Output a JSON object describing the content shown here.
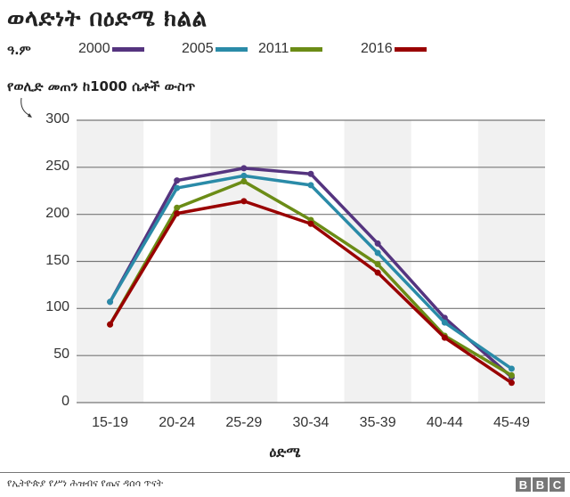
{
  "header": {
    "title": "ወላድነት በዕድሜ ክልል",
    "legend_label": "ዓ.ም",
    "y_axis_note": "የወሊድ መጠን ከ1000 ሴቶች ውስጥ"
  },
  "legend": [
    {
      "label": "2000",
      "color": "#55347f"
    },
    {
      "label": "2005",
      "color": "#2a8ba8"
    },
    {
      "label": "2011",
      "color": "#6b8c16"
    },
    {
      "label": "2016",
      "color": "#990000"
    }
  ],
  "xaxis": {
    "title": "ዕድሜ",
    "ticks": [
      "15-19",
      "20-24",
      "25-29",
      "30-34",
      "35-39",
      "40-44",
      "45-49"
    ]
  },
  "yaxis": {
    "ticks": [
      "0",
      "50",
      "100",
      "150",
      "200",
      "250",
      "300"
    ]
  },
  "footer": {
    "source": "የኢትዮጵያ የሥነ ሕዝብና የጤና ዳሰሳ ጥናት",
    "brand": [
      "B",
      "B",
      "C"
    ]
  },
  "chart_data": {
    "type": "line",
    "title": "ወላድነት በዕድሜ ክልል",
    "xlabel": "ዕድሜ",
    "ylabel": "የወሊድ መጠን ከ1000 ሴቶች ውስጥ",
    "categories": [
      "15-19",
      "20-24",
      "25-29",
      "30-34",
      "35-39",
      "40-44",
      "45-49"
    ],
    "ylim": [
      0,
      300
    ],
    "yticks": [
      0,
      50,
      100,
      150,
      200,
      250,
      300
    ],
    "grid": "horizontal",
    "legend_position": "top",
    "series": [
      {
        "name": "2000",
        "color": "#55347f",
        "values": [
          107,
          236,
          249,
          243,
          169,
          90,
          27
        ]
      },
      {
        "name": "2005",
        "color": "#2a8ba8",
        "values": [
          107,
          228,
          241,
          231,
          159,
          85,
          36
        ]
      },
      {
        "name": "2011",
        "color": "#6b8c16",
        "values": [
          83,
          207,
          235,
          194,
          147,
          71,
          29
        ]
      },
      {
        "name": "2016",
        "color": "#990000",
        "values": [
          83,
          201,
          214,
          190,
          138,
          69,
          21
        ]
      }
    ]
  }
}
